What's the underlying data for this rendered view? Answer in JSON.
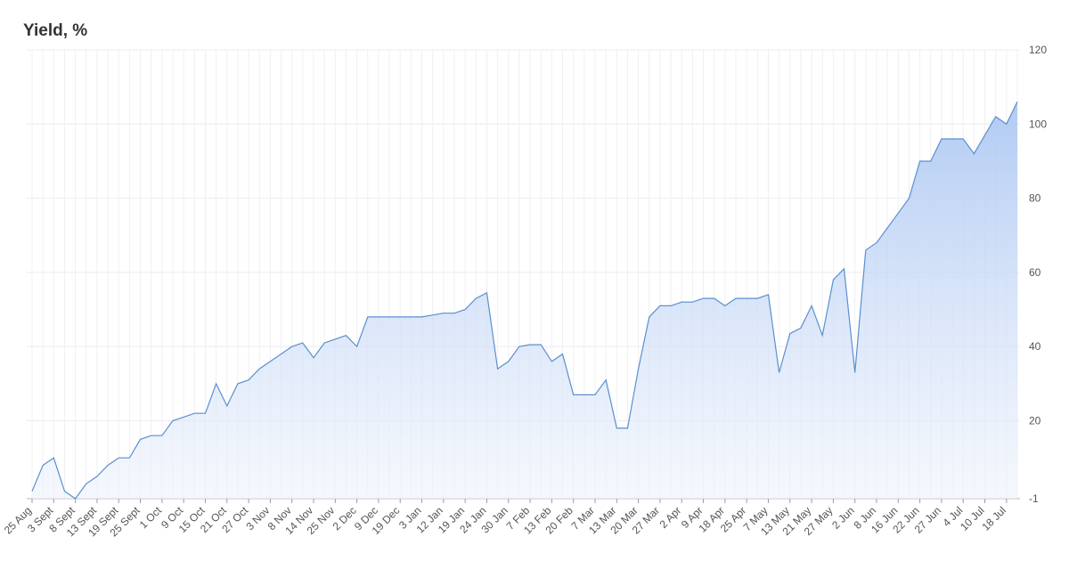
{
  "chart_data": {
    "type": "area",
    "title": "Yield, %",
    "color": "#5b8fd0",
    "categories": [
      "25 Aug",
      null,
      "3 Sept",
      null,
      "8 Sept",
      null,
      "13 Sept",
      null,
      "19 Sept",
      null,
      "25 Sept",
      null,
      "1 Oct",
      null,
      "9 Oct",
      null,
      "15 Oct",
      null,
      "21 Oct",
      null,
      "27 Oct",
      null,
      "3 Nov",
      null,
      "8 Nov",
      null,
      "14 Nov",
      null,
      "25 Nov",
      null,
      "2 Dec",
      null,
      "9 Dec",
      null,
      "19 Dec",
      null,
      "3 Jan",
      null,
      "12 Jan",
      null,
      "19 Jan",
      null,
      "24 Jan",
      null,
      "30 Jan",
      null,
      "7 Feb",
      null,
      "13 Feb",
      null,
      "20 Feb",
      null,
      "7 Mar",
      null,
      "13 Mar",
      null,
      "20 Mar",
      null,
      "27 Mar",
      null,
      "2 Apr",
      null,
      "9 Apr",
      null,
      "18 Apr",
      null,
      "25 Apr",
      null,
      "7 May",
      null,
      "13 May",
      null,
      "21 May",
      null,
      "27 May",
      null,
      "2 Jun",
      null,
      "8 Jun",
      null,
      "16 Jun",
      null,
      "22 Jun",
      null,
      "27 Jun",
      null,
      "4 Jul",
      null,
      "10 Jul",
      null,
      "18 Jul",
      null
    ],
    "values": [
      1,
      8,
      10,
      1,
      -1,
      3,
      5,
      8,
      10,
      10,
      15,
      16,
      16,
      20,
      21,
      22,
      22,
      30,
      24,
      30,
      31,
      34,
      36,
      38,
      40,
      41,
      37,
      41,
      42,
      43,
      40,
      48,
      48,
      48,
      48,
      48,
      48,
      48.5,
      49,
      49,
      50,
      53,
      54.5,
      34,
      36,
      40,
      40.5,
      40.5,
      36,
      38,
      27,
      27,
      27,
      31,
      18,
      18,
      34,
      48,
      51,
      51,
      52,
      52,
      53,
      53,
      51,
      53,
      53,
      53,
      54,
      33,
      43.5,
      45,
      51,
      43,
      58,
      61,
      33,
      66,
      68,
      72,
      76,
      80,
      90,
      90,
      96,
      96,
      96,
      92,
      97,
      102,
      100,
      106
    ],
    "ylim": [
      -1,
      120
    ],
    "yticks": [
      -1,
      20,
      40,
      60,
      80,
      100,
      120
    ],
    "grid": true
  }
}
